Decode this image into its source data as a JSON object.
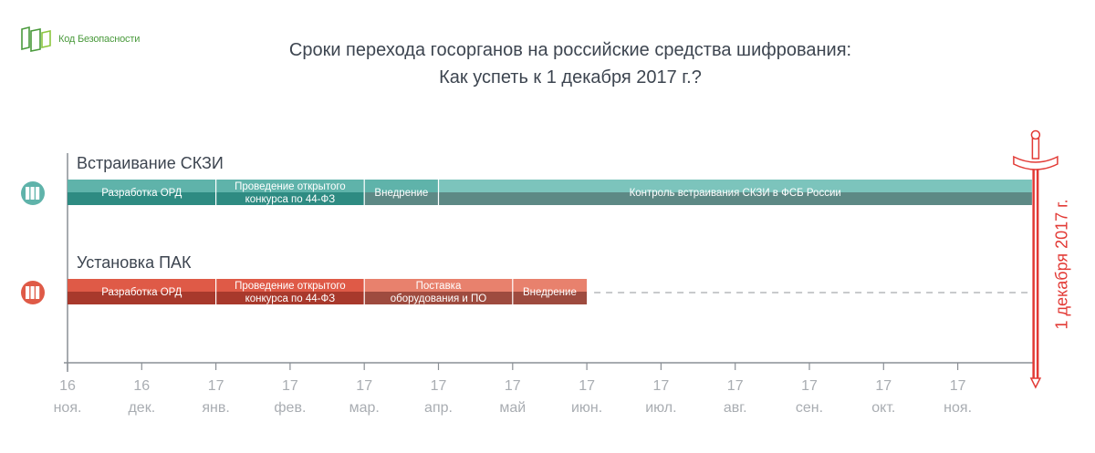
{
  "logo": {
    "text": "Код Безопасности",
    "icon": "brand-logo-icon"
  },
  "title": {
    "line1": "Сроки перехода госорганов на российские средства шифрования:",
    "line2": "Как успеть к 1 декабря 2017 г.?"
  },
  "colors": {
    "teal_light": "#7cc4bc",
    "teal_mid": "#5fb3aa",
    "teal_dark": "#2e8b82",
    "teal_gray": "#5d8985",
    "red_light": "#e8816d",
    "red_mid": "#df5a47",
    "red_dark": "#a8392c",
    "red_brown": "#9e4b3f",
    "deadline": "#e23a35",
    "axis": "#8a8f95",
    "tick_text": "#a9adb2"
  },
  "chart_data": {
    "type": "gantt",
    "x_ticks": [
      {
        "year": "16",
        "month": "ноя."
      },
      {
        "year": "16",
        "month": "дек."
      },
      {
        "year": "17",
        "month": "янв."
      },
      {
        "year": "17",
        "month": "фев."
      },
      {
        "year": "17",
        "month": "мар."
      },
      {
        "year": "17",
        "month": "апр."
      },
      {
        "year": "17",
        "month": "май"
      },
      {
        "year": "17",
        "month": "июн."
      },
      {
        "year": "17",
        "month": "июл."
      },
      {
        "year": "17",
        "month": "авг."
      },
      {
        "year": "17",
        "month": "сен."
      },
      {
        "year": "17",
        "month": "окт."
      },
      {
        "year": "17",
        "month": "ноя."
      }
    ],
    "deadline": {
      "date": "2017-12-01",
      "label": "1 декабря 2017 г."
    },
    "tracks": [
      {
        "name": "Встраивание СКЗИ",
        "color": "teal",
        "phases": [
          {
            "label": "Разработка ОРД",
            "start": "2016-11",
            "end": "2017-01"
          },
          {
            "label": "Проведение открытого конкурса по 44-ФЗ",
            "start": "2017-01",
            "end": "2017-03"
          },
          {
            "label": "Внедрение",
            "start": "2017-03",
            "end": "2017-04"
          },
          {
            "label": "Контроль встраивания СКЗИ в ФСБ России",
            "start": "2017-04",
            "end": "2017-12-01"
          }
        ]
      },
      {
        "name": "Установка ПАК",
        "color": "red",
        "phases": [
          {
            "label": "Разработка ОРД",
            "start": "2016-11",
            "end": "2017-01"
          },
          {
            "label": "Проведение открытого конкурса по 44-ФЗ",
            "start": "2017-01",
            "end": "2017-03"
          },
          {
            "label": "Поставка оборудования и ПО",
            "start": "2017-03",
            "end": "2017-05"
          },
          {
            "label": "Внедрение",
            "start": "2017-05",
            "end": "2017-06"
          }
        ],
        "idle": {
          "start": "2017-06",
          "end": "2017-12-01",
          "style": "dashed"
        }
      }
    ]
  }
}
